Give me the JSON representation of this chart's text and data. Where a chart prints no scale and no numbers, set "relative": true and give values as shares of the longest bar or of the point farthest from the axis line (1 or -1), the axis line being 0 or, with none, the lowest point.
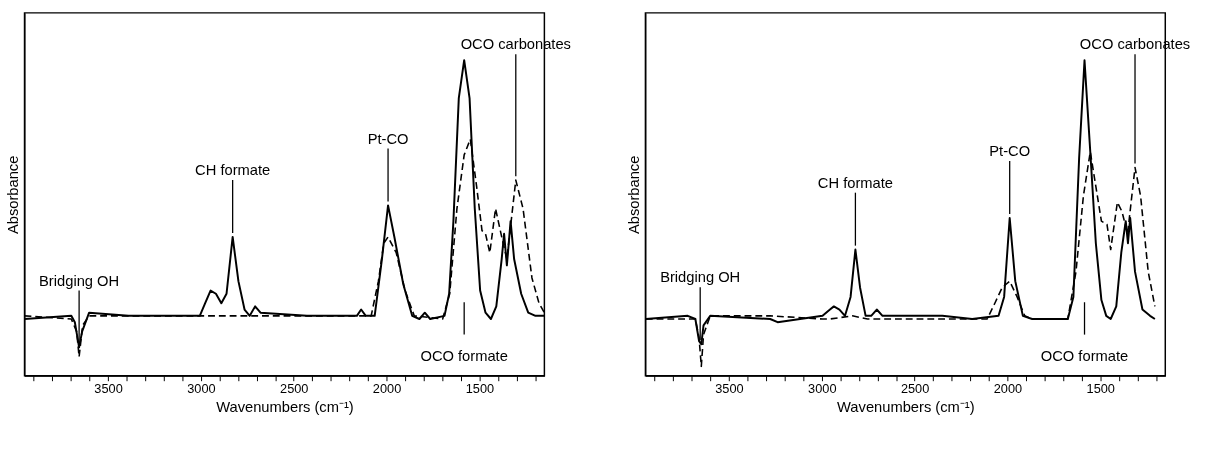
{
  "chart_data": [
    {
      "type": "line",
      "xlabel": "Wavenumbers (cm⁻¹)",
      "ylabel": "Absorbance",
      "relative": true,
      "tick_labels": "x",
      "grid": false,
      "legend": false,
      "marker": "none",
      "xlim": [
        3950,
        1150
      ],
      "xticks": [
        {
          "value": 3900,
          "label": null
        },
        {
          "value": 3800,
          "label": null
        },
        {
          "value": 3700,
          "label": null
        },
        {
          "value": 3600,
          "label": null
        },
        3500,
        {
          "value": 3400,
          "label": null
        },
        {
          "value": 3300,
          "label": null
        },
        {
          "value": 3200,
          "label": null
        },
        {
          "value": 3100,
          "label": null
        },
        3000,
        {
          "value": 2900,
          "label": null
        },
        {
          "value": 2800,
          "label": null
        },
        {
          "value": 2700,
          "label": null
        },
        {
          "value": 2600,
          "label": null
        },
        2500,
        {
          "value": 2400,
          "label": null
        },
        {
          "value": 2300,
          "label": null
        },
        {
          "value": 2200,
          "label": null
        },
        {
          "value": 2100,
          "label": null
        },
        2000,
        {
          "value": 1900,
          "label": null
        },
        {
          "value": 1800,
          "label": null
        },
        {
          "value": 1700,
          "label": null
        },
        {
          "value": 1600,
          "label": null
        },
        1500,
        {
          "value": 1400,
          "label": null
        },
        {
          "value": 1300,
          "label": null
        },
        {
          "value": 1200,
          "label": null
        }
      ],
      "series": [
        {
          "color": "#000000",
          "line_style": "solid",
          "x": [
            3950,
            3698,
            3679,
            3656,
            3640,
            3602,
            3390,
            3006,
            2977,
            2948,
            2919,
            2890,
            2862,
            2829,
            2798,
            2765,
            2737,
            2708,
            2679,
            2429,
            2160,
            2137,
            2112,
            2064,
            2025,
            1992,
            1958,
            1910,
            1862,
            1823,
            1794,
            1765,
            1688,
            1663,
            1640,
            1611,
            1582,
            1553,
            1525,
            1496,
            1467,
            1438,
            1409,
            1380,
            1367,
            1352,
            1332,
            1313,
            1275,
            1237,
            1198,
            1150
          ],
          "values": [
            0.18,
            0.19,
            0.17,
            0.09,
            0.14,
            0.2,
            0.19,
            0.19,
            0.23,
            0.27,
            0.26,
            0.23,
            0.26,
            0.44,
            0.3,
            0.21,
            0.19,
            0.22,
            0.2,
            0.19,
            0.19,
            0.21,
            0.19,
            0.19,
            0.37,
            0.54,
            0.44,
            0.29,
            0.19,
            0.18,
            0.2,
            0.18,
            0.19,
            0.26,
            0.49,
            0.88,
            1.0,
            0.88,
            0.53,
            0.27,
            0.2,
            0.18,
            0.22,
            0.37,
            0.45,
            0.35,
            0.49,
            0.37,
            0.26,
            0.2,
            0.19,
            0.19
          ]
        },
        {
          "color": "#000000",
          "line_style": "dashed",
          "x": [
            3950,
            3698,
            3669,
            3656,
            3637,
            3602,
            3006,
            2813,
            2429,
            2083,
            2044,
            2015,
            1992,
            1948,
            1900,
            1851,
            1698,
            1660,
            1621,
            1582,
            1549,
            1515,
            1486,
            1467,
            1444,
            1413,
            1380,
            1352,
            1304,
            1265,
            1217,
            1179,
            1150
          ],
          "values": [
            0.19,
            0.18,
            0.14,
            0.06,
            0.16,
            0.19,
            0.19,
            0.19,
            0.19,
            0.19,
            0.3,
            0.42,
            0.44,
            0.39,
            0.27,
            0.19,
            0.18,
            0.26,
            0.53,
            0.7,
            0.75,
            0.6,
            0.46,
            0.45,
            0.39,
            0.53,
            0.44,
            0.37,
            0.62,
            0.53,
            0.31,
            0.23,
            0.2
          ]
        }
      ],
      "annotations": [
        {
          "text": "Bridging OH",
          "x": 3656,
          "y": 0.09
        },
        {
          "text": "CH formate",
          "x": 2829,
          "y": 0.44
        },
        {
          "text": "Pt-CO",
          "x": 1992,
          "y": 0.54
        },
        {
          "text": "OCO carbonates",
          "x": 1304,
          "y": 0.62
        },
        {
          "text": "OCO formate",
          "x": 1582
        }
      ]
    },
    {
      "type": "line",
      "xlabel": "Wavenumbers (cm⁻¹)",
      "ylabel": "Absorbance",
      "relative": true,
      "tick_labels": "x",
      "grid": false,
      "legend": false,
      "marker": "none",
      "xlim": [
        3950,
        1150
      ],
      "xticks": [
        {
          "value": 3900,
          "label": null
        },
        {
          "value": 3800,
          "label": null
        },
        {
          "value": 3700,
          "label": null
        },
        {
          "value": 3600,
          "label": null
        },
        3500,
        {
          "value": 3400,
          "label": null
        },
        {
          "value": 3300,
          "label": null
        },
        {
          "value": 3200,
          "label": null
        },
        {
          "value": 3100,
          "label": null
        },
        3000,
        {
          "value": 2900,
          "label": null
        },
        {
          "value": 2800,
          "label": null
        },
        {
          "value": 2700,
          "label": null
        },
        {
          "value": 2600,
          "label": null
        },
        2500,
        {
          "value": 2400,
          "label": null
        },
        {
          "value": 2300,
          "label": null
        },
        {
          "value": 2200,
          "label": null
        },
        {
          "value": 2100,
          "label": null
        },
        2000,
        {
          "value": 1900,
          "label": null
        },
        {
          "value": 1800,
          "label": null
        },
        {
          "value": 1700,
          "label": null
        },
        {
          "value": 1600,
          "label": null
        },
        1500,
        {
          "value": 1400,
          "label": null
        },
        {
          "value": 1300,
          "label": null
        },
        {
          "value": 1200,
          "label": null
        }
      ],
      "series": [
        {
          "color": "#000000",
          "line_style": "solid",
          "x": [
            3948,
            3722,
            3681,
            3661,
            3649,
            3637,
            3601,
            3278,
            3238,
            2996,
            2956,
            2935,
            2905,
            2875,
            2845,
            2819,
            2794,
            2764,
            2734,
            2704,
            2673,
            2351,
            2190,
            2048,
            2018,
            1988,
            1958,
            1917,
            1867,
            1675,
            1645,
            1614,
            1585,
            1554,
            1524,
            1494,
            1468,
            1444,
            1414,
            1387,
            1363,
            1351,
            1339,
            1313,
            1273,
            1232,
            1206
          ],
          "values": [
            0.18,
            0.19,
            0.18,
            0.11,
            0.1,
            0.16,
            0.19,
            0.18,
            0.17,
            0.19,
            0.21,
            0.22,
            0.21,
            0.19,
            0.25,
            0.4,
            0.28,
            0.19,
            0.19,
            0.21,
            0.19,
            0.19,
            0.18,
            0.19,
            0.25,
            0.5,
            0.3,
            0.19,
            0.18,
            0.18,
            0.25,
            0.69,
            1.0,
            0.71,
            0.42,
            0.24,
            0.19,
            0.18,
            0.22,
            0.39,
            0.49,
            0.42,
            0.5,
            0.33,
            0.21,
            0.19,
            0.18
          ]
        },
        {
          "color": "#000000",
          "line_style": "dashed",
          "x": [
            3948,
            3681,
            3661,
            3649,
            3637,
            3601,
            3278,
            2996,
            2956,
            2835,
            2754,
            2653,
            2351,
            2109,
            2068,
            2028,
            1988,
            1948,
            1907,
            1867,
            1675,
            1631,
            1591,
            1554,
            1524,
            1494,
            1464,
            1444,
            1408,
            1383,
            1353,
            1313,
            1283,
            1242,
            1206
          ],
          "values": [
            0.18,
            0.18,
            0.12,
            0.03,
            0.13,
            0.19,
            0.19,
            0.18,
            0.18,
            0.19,
            0.18,
            0.18,
            0.18,
            0.18,
            0.23,
            0.28,
            0.3,
            0.25,
            0.19,
            0.18,
            0.18,
            0.33,
            0.57,
            0.71,
            0.6,
            0.49,
            0.48,
            0.4,
            0.55,
            0.52,
            0.45,
            0.66,
            0.57,
            0.33,
            0.22
          ]
        }
      ],
      "annotations": [
        {
          "text": "Bridging OH",
          "x": 3655,
          "y": 0.1
        },
        {
          "text": "CH formate",
          "x": 2819,
          "y": 0.4
        },
        {
          "text": "Pt-CO",
          "x": 1988,
          "y": 0.5
        },
        {
          "text": "OCO carbonates",
          "x": 1313,
          "y": 0.66
        },
        {
          "text": "OCO formate",
          "x": 1585
        }
      ]
    }
  ]
}
